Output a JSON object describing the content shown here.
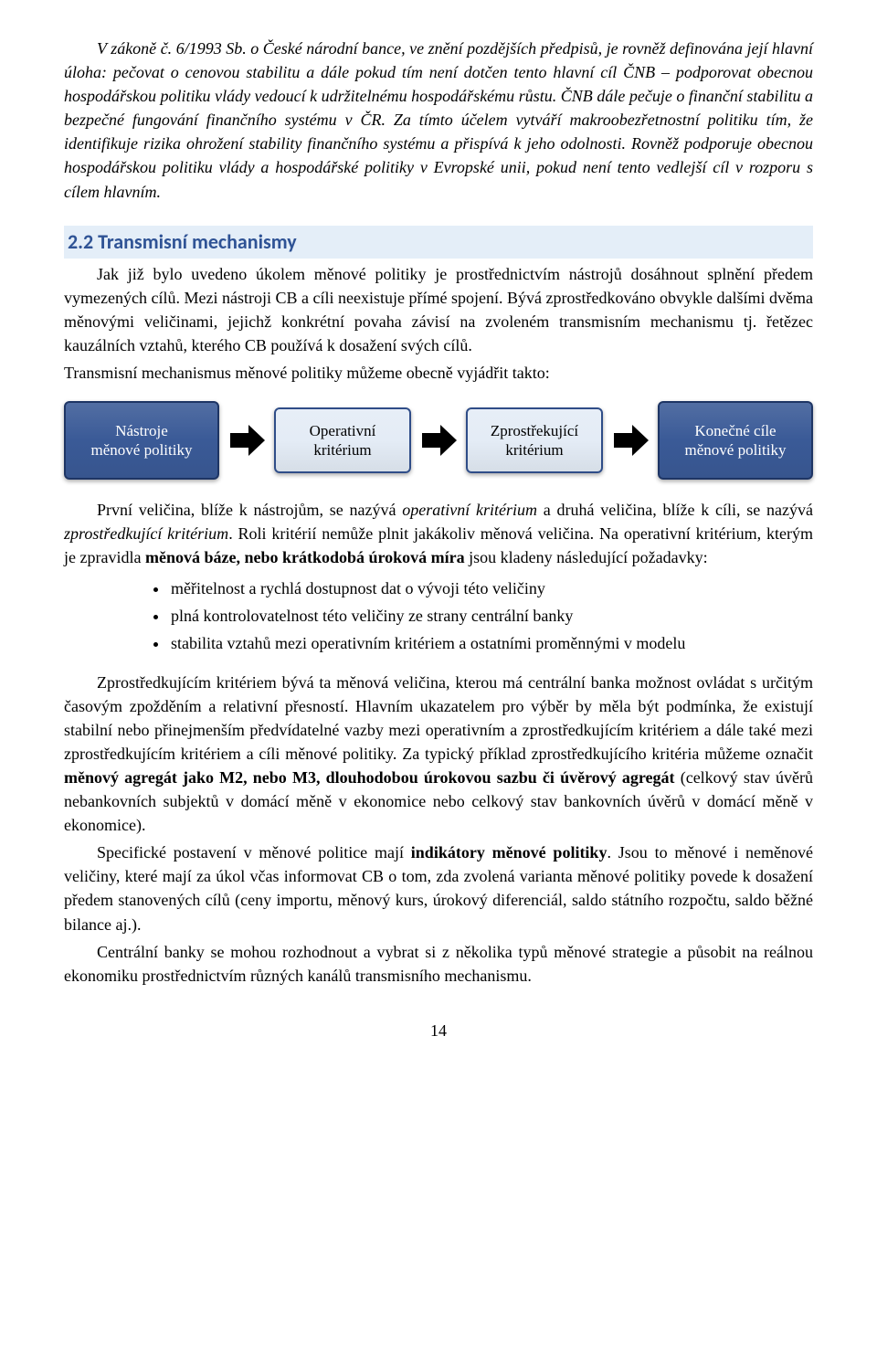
{
  "intro_paragraph": "V zákoně č. 6/1993 Sb. o České národní bance, ve znění pozdějších předpisů, je rovněž definována její hlavní úloha: pečovat o cenovou stabilitu a dále pokud tím není dotčen tento hlavní cíl ČNB – podporovat obecnou hospodářskou politiku vlády vedoucí k udržitelnému hospodářskému růstu. ČNB dále pečuje o finanční stabilitu a bezpečné fungování finančního systému v ČR. Za tímto účelem vytváří makroobezřetnostní politiku tím, že identifikuje rizika ohrožení stability finančního systému a přispívá k jeho odolnosti. Rovněž podporuje obecnou hospodářskou politiku vlády a hospodářské politiky v Evropské unii, pokud není tento vedlejší cíl v rozporu s cílem hlavním.",
  "heading": "2.2 Transmisní mechanismy",
  "p1": "Jak již bylo uvedeno úkolem měnové politiky je prostřednictvím nástrojů dosáhnout splnění předem vymezených cílů. Mezi nástroji CB a cíli neexistuje přímé spojení. Bývá zprostředkováno obvykle dalšími dvěma měnovými veličinami, jejichž konkrétní povaha závisí na zvoleném transmisním mechanismu tj. řetězec kauzálních vztahů, kterého CB používá k dosažení svých cílů.",
  "p2": "Transmisní mechanismus měnové politiky můžeme obecně vyjádřit takto:",
  "flow": {
    "type": "flowchart",
    "nodes": [
      {
        "line1": "Nástroje",
        "line2": "měnové politiky",
        "bg": "#3a5a97",
        "border": "#1e3564",
        "text": "#ffffff"
      },
      {
        "line1": "Operativní",
        "line2": "kritérium",
        "bg": "#e4ecf6",
        "border": "#2f4d88",
        "text": "#000000"
      },
      {
        "line1": "Zprostřekující",
        "line2": "kritérium",
        "bg": "#e4ecf6",
        "border": "#2f4d88",
        "text": "#000000"
      },
      {
        "line1": "Konečné cíle",
        "line2": "měnové politiky",
        "bg": "#3a5a97",
        "border": "#1e3564",
        "text": "#ffffff"
      }
    ],
    "arrow_color": "#000000"
  },
  "p3_parts": {
    "a": "První veličina, blíže k nástrojům, se nazývá ",
    "b_i": "operativní kritérium",
    "c": " a druhá veličina, blíže k cíli, se nazývá ",
    "d_i": "zprostředkující kritérium",
    "e": ". Roli kritérií nemůže plnit jakákoliv měnová veličina. Na operativní kritérium, kterým je zpravidla ",
    "f_b": "měnová báze, nebo krátkodobá úroková míra",
    "g": " jsou kladeny následující požadavky:"
  },
  "bullets": [
    "měřitelnost a rychlá dostupnost dat o vývoji této veličiny",
    "plná kontrolovatelnost této veličiny ze strany centrální banky",
    "stabilita vztahů mezi operativním kritériem a ostatními proměnnými v modelu"
  ],
  "p4_parts": {
    "a": "Zprostředkujícím kritériem bývá ta měnová veličina, kterou má centrální banka možnost ovládat s určitým časovým zpožděním a relativní přesností. Hlavním ukazatelem pro výběr by měla být podmínka, že existují stabilní nebo přinejmenším předvídatelné vazby mezi operativním a zprostředkujícím kritériem a dále také mezi zprostředkujícím kritériem a cíli měnové politiky. Za typický příklad zprostředkujícího kritéria můžeme označit ",
    "b_b": "měnový agregát jako M2, nebo M3, dlouhodobou úrokovou sazbu či úvěrový agregát",
    "c": " (celkový stav úvěrů nebankovních subjektů v domácí měně v ekonomice nebo celkový stav bankovních úvěrů v domácí měně v ekonomice)."
  },
  "p5_parts": {
    "a": "Specifické postavení v měnové politice mají ",
    "b_b": "indikátory měnové politiky",
    "c": ". Jsou to měnové i neměnové veličiny, které mají za úkol včas informovat CB o tom, zda zvolená varianta měnové politiky povede k dosažení předem stanovených cílů (ceny importu, měnový kurs, úrokový diferenciál, saldo státního rozpočtu, saldo běžné bilance aj.)."
  },
  "p6": "Centrální banky se mohou rozhodnout a vybrat si z několika typů měnové strategie a působit na reálnou ekonomiku prostřednictvím různých kanálů transmisního mechanismu.",
  "page_number": "14"
}
